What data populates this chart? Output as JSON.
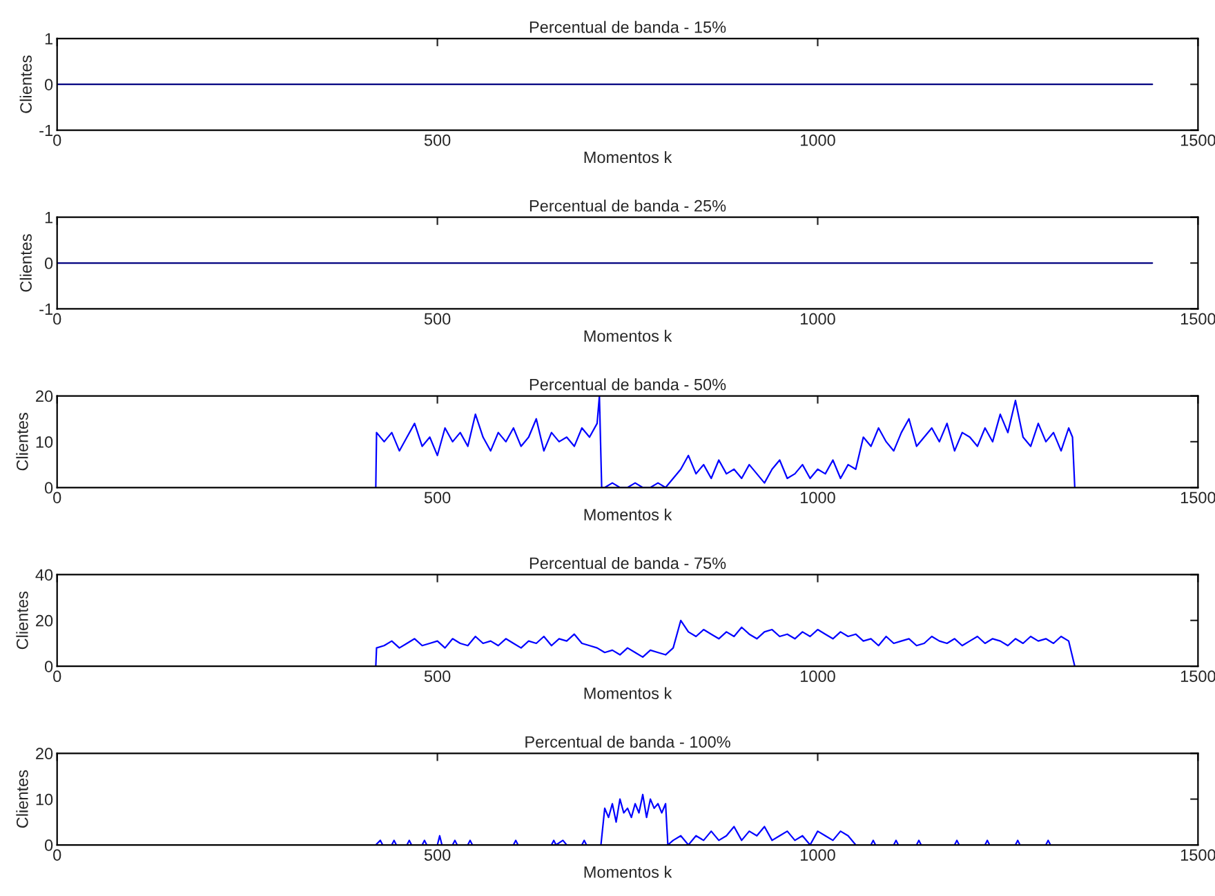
{
  "chart_data": [
    {
      "type": "line",
      "title": "Percentual de banda - 15%",
      "xlabel": "Momentos k",
      "ylabel": "Clientes",
      "xlim": [
        0,
        1500
      ],
      "xticks": [
        0,
        500,
        1000,
        1500
      ],
      "ylim": [
        -1,
        1
      ],
      "yticks": [
        -1,
        0,
        1
      ],
      "grid": false,
      "legend": false,
      "series": [
        {
          "color": "#000080",
          "x": [
            0,
            1440
          ],
          "values": [
            0,
            0
          ]
        }
      ]
    },
    {
      "type": "line",
      "title": "Percentual de banda - 25%",
      "xlabel": "Momentos k",
      "ylabel": "Clientes",
      "xlim": [
        0,
        1500
      ],
      "xticks": [
        0,
        500,
        1000,
        1500
      ],
      "ylim": [
        -1,
        1
      ],
      "yticks": [
        -1,
        0,
        1
      ],
      "grid": false,
      "legend": false,
      "series": [
        {
          "color": "#000080",
          "x": [
            0,
            1440
          ],
          "values": [
            0,
            0
          ]
        }
      ]
    },
    {
      "type": "line",
      "title": "Percentual de banda - 50%",
      "xlabel": "Momentos k",
      "ylabel": "Clientes",
      "xlim": [
        0,
        1500
      ],
      "xticks": [
        0,
        500,
        1000,
        1500
      ],
      "ylim": [
        0,
        20
      ],
      "yticks": [
        0,
        10,
        20
      ],
      "grid": false,
      "legend": false,
      "series": [
        {
          "color": "#0000ff",
          "x": [
            419,
            420,
            430,
            440,
            450,
            460,
            470,
            480,
            490,
            500,
            510,
            520,
            530,
            540,
            550,
            560,
            570,
            580,
            590,
            600,
            610,
            620,
            630,
            640,
            650,
            660,
            670,
            680,
            690,
            700,
            710,
            713,
            716,
            720,
            730,
            740,
            750,
            760,
            770,
            780,
            790,
            800,
            810,
            820,
            830,
            840,
            850,
            860,
            870,
            880,
            890,
            900,
            910,
            920,
            930,
            940,
            950,
            960,
            970,
            980,
            990,
            1000,
            1010,
            1020,
            1030,
            1040,
            1050,
            1060,
            1070,
            1080,
            1090,
            1100,
            1110,
            1120,
            1130,
            1140,
            1150,
            1160,
            1170,
            1180,
            1190,
            1200,
            1210,
            1220,
            1230,
            1240,
            1250,
            1260,
            1270,
            1280,
            1290,
            1300,
            1310,
            1320,
            1330,
            1335,
            1338
          ],
          "values": [
            0,
            12,
            10,
            12,
            8,
            11,
            14,
            9,
            11,
            7,
            13,
            10,
            12,
            9,
            16,
            11,
            8,
            12,
            10,
            13,
            9,
            11,
            15,
            8,
            12,
            10,
            11,
            9,
            13,
            11,
            14,
            20,
            0,
            0,
            1,
            0,
            0,
            1,
            0,
            0,
            1,
            0,
            2,
            4,
            7,
            3,
            5,
            2,
            6,
            3,
            4,
            2,
            5,
            3,
            1,
            4,
            6,
            2,
            3,
            5,
            2,
            4,
            3,
            6,
            2,
            5,
            4,
            11,
            9,
            13,
            10,
            8,
            12,
            15,
            9,
            11,
            13,
            10,
            14,
            8,
            12,
            11,
            9,
            13,
            10,
            16,
            12,
            19,
            11,
            9,
            14,
            10,
            12,
            8,
            13,
            11,
            0
          ]
        }
      ]
    },
    {
      "type": "line",
      "title": "Percentual de banda - 75%",
      "xlabel": "Momentos k",
      "ylabel": "Clientes",
      "xlim": [
        0,
        1500
      ],
      "xticks": [
        0,
        500,
        1000,
        1500
      ],
      "ylim": [
        0,
        40
      ],
      "yticks": [
        0,
        20,
        40
      ],
      "grid": false,
      "legend": false,
      "series": [
        {
          "color": "#0000ff",
          "x": [
            419,
            420,
            430,
            440,
            450,
            460,
            470,
            480,
            490,
            500,
            510,
            520,
            530,
            540,
            550,
            560,
            570,
            580,
            590,
            600,
            610,
            620,
            630,
            640,
            650,
            660,
            670,
            680,
            690,
            700,
            710,
            720,
            730,
            740,
            750,
            760,
            770,
            780,
            790,
            800,
            810,
            820,
            830,
            840,
            850,
            860,
            870,
            880,
            890,
            900,
            910,
            920,
            930,
            940,
            950,
            960,
            970,
            980,
            990,
            1000,
            1010,
            1020,
            1030,
            1040,
            1050,
            1060,
            1070,
            1080,
            1090,
            1100,
            1110,
            1120,
            1130,
            1140,
            1150,
            1160,
            1170,
            1180,
            1190,
            1200,
            1210,
            1220,
            1230,
            1240,
            1250,
            1260,
            1270,
            1280,
            1290,
            1300,
            1310,
            1320,
            1330,
            1338
          ],
          "values": [
            0,
            8,
            9,
            11,
            8,
            10,
            12,
            9,
            10,
            11,
            8,
            12,
            10,
            9,
            13,
            10,
            11,
            9,
            12,
            10,
            8,
            11,
            10,
            13,
            9,
            12,
            11,
            14,
            10,
            9,
            8,
            6,
            7,
            5,
            8,
            6,
            4,
            7,
            6,
            5,
            8,
            20,
            15,
            13,
            16,
            14,
            12,
            15,
            13,
            17,
            14,
            12,
            15,
            16,
            13,
            14,
            12,
            15,
            13,
            16,
            14,
            12,
            15,
            13,
            14,
            11,
            12,
            9,
            13,
            10,
            11,
            12,
            9,
            10,
            13,
            11,
            10,
            12,
            9,
            11,
            13,
            10,
            12,
            11,
            9,
            12,
            10,
            13,
            11,
            12,
            10,
            13,
            11,
            0
          ]
        }
      ]
    },
    {
      "type": "line",
      "title": "Percentual de banda - 100%",
      "xlabel": "Momentos k",
      "ylabel": "Clientes",
      "xlim": [
        0,
        1500
      ],
      "xticks": [
        0,
        500,
        1000,
        1500
      ],
      "ylim": [
        0,
        20
      ],
      "yticks": [
        0,
        10,
        20
      ],
      "grid": false,
      "legend": false,
      "series": [
        {
          "color": "#0000ff",
          "x": [
            419,
            425,
            428,
            440,
            443,
            446,
            460,
            463,
            466,
            480,
            483,
            486,
            500,
            503,
            506,
            520,
            523,
            526,
            540,
            543,
            546,
            600,
            603,
            606,
            650,
            653,
            656,
            665,
            670,
            690,
            693,
            696,
            715,
            720,
            725,
            730,
            735,
            740,
            745,
            750,
            755,
            760,
            765,
            770,
            775,
            780,
            785,
            790,
            795,
            800,
            803,
            810,
            820,
            830,
            840,
            850,
            860,
            870,
            880,
            890,
            900,
            910,
            920,
            930,
            940,
            950,
            960,
            970,
            980,
            990,
            1000,
            1010,
            1020,
            1030,
            1040,
            1050,
            1070,
            1073,
            1076,
            1100,
            1103,
            1106,
            1130,
            1133,
            1136,
            1180,
            1183,
            1186,
            1220,
            1223,
            1226,
            1260,
            1263,
            1266,
            1300,
            1303,
            1306,
            1330
          ],
          "values": [
            0,
            1,
            0,
            0,
            1,
            0,
            0,
            1,
            0,
            0,
            1,
            0,
            0,
            2,
            0,
            0,
            1,
            0,
            0,
            1,
            0,
            0,
            1,
            0,
            0,
            1,
            0,
            1,
            0,
            0,
            1,
            0,
            0,
            8,
            6,
            9,
            5,
            10,
            7,
            8,
            6,
            9,
            7,
            11,
            6,
            10,
            8,
            9,
            7,
            9,
            0,
            1,
            2,
            0,
            2,
            1,
            3,
            1,
            2,
            4,
            1,
            3,
            2,
            4,
            1,
            2,
            3,
            1,
            2,
            0,
            3,
            2,
            1,
            3,
            2,
            0,
            0,
            1,
            0,
            0,
            1,
            0,
            0,
            1,
            0,
            0,
            1,
            0,
            0,
            1,
            0,
            0,
            1,
            0,
            0,
            1,
            0,
            0
          ]
        }
      ]
    }
  ]
}
